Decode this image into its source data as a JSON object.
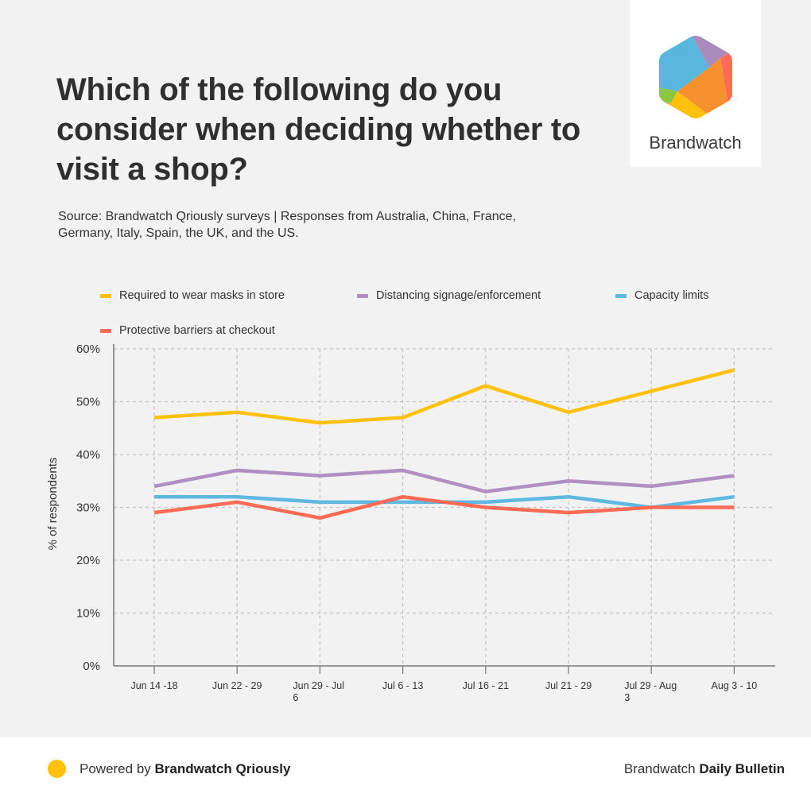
{
  "header": {
    "title": "Which of the following do you consider when deciding whether to visit a shop?",
    "subtitle": "Source: Brandwatch Qriously surveys | Responses from Australia, China, France, Germany, Italy, Spain, the UK, and the US."
  },
  "logo": {
    "name": "hexagon-logo-icon",
    "text": "Brandwatch",
    "colors": [
      "#59b6dc",
      "#a98bbd",
      "#ff6b55",
      "#f7902f",
      "#ffc10e",
      "#8cc53f"
    ]
  },
  "footer": {
    "left_prefix": "Powered by ",
    "left_bold": "Brandwatch Qriously",
    "right_prefix": "Brandwatch ",
    "right_bold": "Daily Bulletin",
    "dot_color": "#ffc10e"
  },
  "chart_data": {
    "type": "line",
    "title": "Which of the following do you consider when deciding whether to visit a shop?",
    "xlabel": "",
    "ylabel": "% of respondents",
    "ylim": [
      0,
      60
    ],
    "yticks": [
      0,
      10,
      20,
      30,
      40,
      50,
      60
    ],
    "ytick_labels": [
      "0%",
      "10%",
      "20%",
      "30%",
      "40%",
      "50%",
      "60%"
    ],
    "grid": true,
    "legend_position": "top",
    "categories": [
      "Jun 14 -18",
      "Jun 22 - 29",
      "Jun 29 - Jul 6",
      "Jul 6 - 13",
      "Jul 16 - 21",
      "Jul 21 - 29",
      "Jul 29 - Aug 3",
      "Aug 3 - 10"
    ],
    "category_lines": [
      [
        "Jun 14 -18"
      ],
      [
        "Jun 22 - 29"
      ],
      [
        "Jun 29 - Jul",
        "6"
      ],
      [
        "Jul 6 - 13"
      ],
      [
        "Jul 16 - 21"
      ],
      [
        "Jul 21 - 29"
      ],
      [
        "Jul 29 - Aug",
        "3"
      ],
      [
        "Aug 3 - 10"
      ]
    ],
    "series": [
      {
        "name": "Required to wear masks in store",
        "color": "#ffc10e",
        "values": [
          47,
          48,
          46,
          47,
          53,
          48,
          52,
          56
        ]
      },
      {
        "name": "Distancing signage/enforcement",
        "color": "#b08fc2",
        "values": [
          34,
          37,
          36,
          37,
          33,
          35,
          34,
          36
        ]
      },
      {
        "name": "Capacity limits",
        "color": "#5fb8e0",
        "values": [
          32,
          32,
          31,
          31,
          31,
          32,
          30,
          32
        ]
      },
      {
        "name": "Protective barriers at checkout",
        "color": "#ff6b55",
        "values": [
          29,
          31,
          28,
          32,
          30,
          29,
          30,
          30
        ]
      }
    ]
  }
}
